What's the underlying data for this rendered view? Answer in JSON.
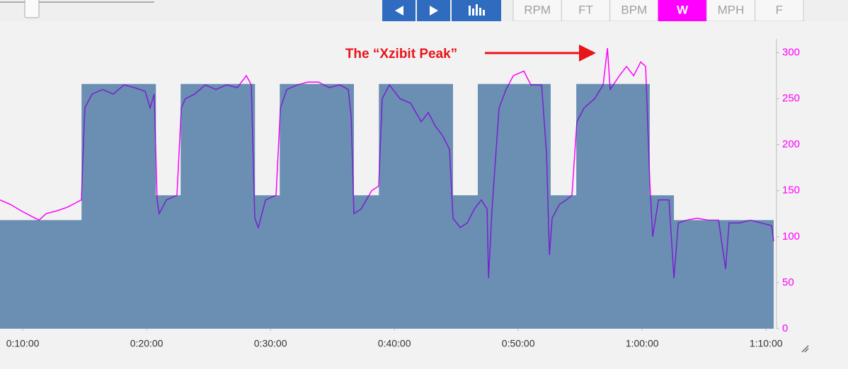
{
  "toolbar": {
    "units": [
      "RPM",
      "FT",
      "BPM",
      "W",
      "MPH",
      "F"
    ],
    "selected": 3
  },
  "chart_data": {
    "type": "area",
    "annotation": {
      "text": "The “Xzibit Peak”",
      "color": "#e8141b"
    },
    "xlim": [
      490,
      4237
    ],
    "xticks": [
      {
        "value": 600,
        "label": "0:10:00"
      },
      {
        "value": 1200,
        "label": "0:20:00"
      },
      {
        "value": 1800,
        "label": "0:30:00"
      },
      {
        "value": 2400,
        "label": "0:40:00"
      },
      {
        "value": 3000,
        "label": "0:50:00"
      },
      {
        "value": 3600,
        "label": "1:00:00"
      },
      {
        "value": 4200,
        "label": "1:10:00"
      }
    ],
    "ylim": [
      0,
      315
    ],
    "yticks": [
      0,
      50,
      100,
      150,
      200,
      250,
      300
    ],
    "ytick_color": "#ff00ff",
    "series": [
      {
        "step": true,
        "color": "#6a8fb3",
        "x": [
          490,
          885,
          1245,
          1365,
          1725,
          1845,
          2204,
          2325,
          2684,
          2804,
          3157,
          3281,
          3637,
          3754,
          4237
        ],
        "values": [
          118,
          266,
          145,
          266,
          145,
          266,
          145,
          266,
          145,
          266,
          145,
          266,
          145,
          118,
          118
        ]
      },
      {
        "color": "#7a1fd0",
        "above_color": "#ff00ff",
        "x": [
          490,
          541,
          593,
          644,
          679,
          713,
          764,
          816,
          867,
          884,
          901,
          936,
          987,
          1039,
          1090,
          1141,
          1193,
          1217,
          1237,
          1251,
          1261,
          1296,
          1347,
          1368,
          1388,
          1433,
          1484,
          1536,
          1587,
          1639,
          1683,
          1707,
          1724,
          1741,
          1776,
          1827,
          1848,
          1879,
          1930,
          1981,
          2033,
          2084,
          2136,
          2177,
          2191,
          2204,
          2239,
          2290,
          2324,
          2341,
          2376,
          2427,
          2479,
          2530,
          2564,
          2599,
          2633,
          2667,
          2684,
          2719,
          2753,
          2787,
          2821,
          2849,
          2856,
          2873,
          2907,
          2941,
          2976,
          3027,
          3061,
          3113,
          3137,
          3151,
          3164,
          3199,
          3233,
          3260,
          3284,
          3319,
          3370,
          3411,
          3432,
          3445,
          3490,
          3524,
          3559,
          3593,
          3617,
          3637,
          3651,
          3679,
          3730,
          3754,
          3775,
          3816,
          3867,
          3919,
          3970,
          4004,
          4021,
          4073,
          4124,
          4176,
          4227,
          4237
        ],
        "values": [
          140,
          135,
          128,
          122,
          118,
          125,
          128,
          132,
          138,
          140,
          240,
          255,
          260,
          255,
          265,
          262,
          258,
          240,
          255,
          140,
          125,
          140,
          145,
          240,
          250,
          255,
          265,
          260,
          265,
          262,
          275,
          265,
          120,
          110,
          140,
          145,
          240,
          260,
          265,
          268,
          268,
          262,
          265,
          260,
          230,
          125,
          130,
          150,
          155,
          250,
          265,
          250,
          245,
          225,
          235,
          220,
          210,
          195,
          120,
          110,
          115,
          130,
          140,
          130,
          55,
          130,
          240,
          260,
          275,
          280,
          265,
          265,
          190,
          80,
          120,
          135,
          140,
          145,
          225,
          240,
          250,
          265,
          305,
          260,
          275,
          285,
          275,
          290,
          285,
          160,
          100,
          140,
          140,
          55,
          115,
          118,
          120,
          118,
          118,
          65,
          115,
          115,
          118,
          115,
          112,
          95
        ]
      }
    ]
  }
}
